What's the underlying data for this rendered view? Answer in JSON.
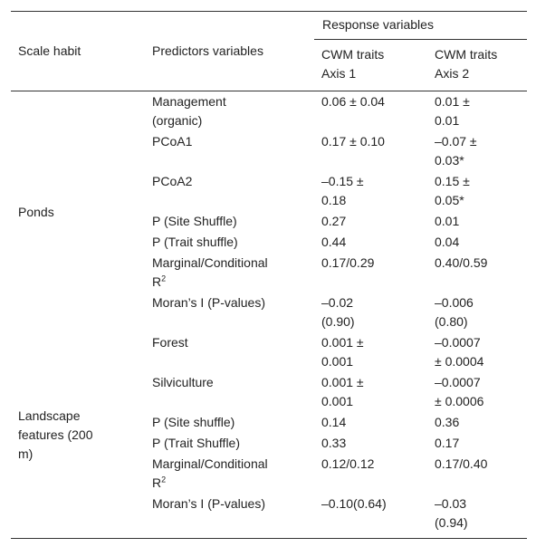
{
  "table": {
    "header": {
      "scale_habit": "Scale habit",
      "predictors": "Predictors variables",
      "response": "Response variables",
      "axis1": "CWM traits\nAxis 1",
      "axis2": "CWM traits\nAxis 2"
    },
    "groups": [
      {
        "name": "Ponds",
        "rows": [
          [
            "Management\n(organic)",
            "0.06 ± 0.04",
            "0.01 ±\n0.01"
          ],
          [
            "PCoA1",
            "0.17 ± 0.10",
            "–0.07 ±\n0.03*"
          ],
          [
            "PCoA2",
            "–0.15 ±\n0.18",
            "0.15 ±\n0.05*"
          ],
          [
            "P (Site Shuffle)",
            "0.27",
            "0.01"
          ],
          [
            "P (Trait shuffle)",
            "0.44",
            "0.04"
          ],
          [
            {
              "text": "Marginal/Conditional\nR",
              "sup": "2"
            },
            "0.17/0.29",
            "0.40/0.59"
          ],
          [
            "Moran’s I (P-values)",
            "–0.02\n(0.90)",
            "–0.006\n(0.80)"
          ]
        ]
      },
      {
        "name": "Landscape\nfeatures (200\nm)",
        "rows": [
          [
            "Forest",
            "0.001 ±\n0.001",
            "–0.0007\n± 0.0004"
          ],
          [
            "Silviculture",
            "0.001 ±\n0.001",
            "–0.0007\n± 0.0006"
          ],
          [
            "P (Site shuffle)",
            "0.14",
            "0.36"
          ],
          [
            "P (Trait Shuffle)",
            "0.33",
            "0.17"
          ],
          [
            {
              "text": "Marginal/Conditional\nR",
              "sup": "2"
            },
            "0.12/0.12",
            "0.17/0.40"
          ],
          [
            "Moran’s I (P-values)",
            "–0.10(0.64)",
            "–0.03\n(0.94)"
          ]
        ]
      }
    ]
  }
}
